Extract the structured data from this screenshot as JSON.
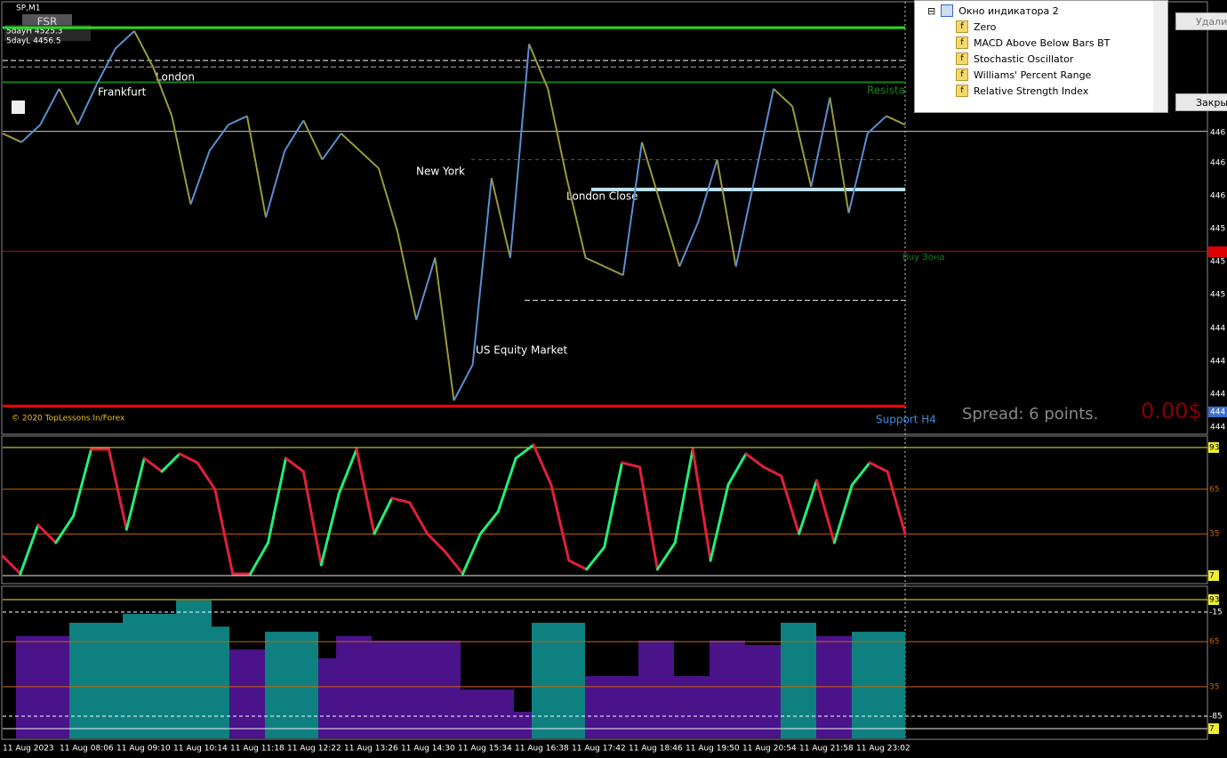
{
  "window_title": "SP,M1",
  "fsr_button": "FSR",
  "five_day_high": "5dayH 4525.3",
  "five_day_low": "5dayL 4456.5",
  "copyright": "© 2020 TopLessons.In/Forex",
  "session_labels": [
    "Frankfurt",
    "London",
    "New York",
    "London Close",
    "US Equity Market"
  ],
  "zone_labels": [
    "Resista",
    "Buy Зона",
    "Support H4"
  ],
  "spread": "Spread: 6 points.",
  "profit": "0.00$",
  "price_axis_labels": [
    "446",
    "446",
    "446",
    "445",
    "445",
    "445",
    "444",
    "444",
    "444",
    "444",
    "444"
  ],
  "price_pane": {
    "ylim": [
      4439.4,
      4478.9
    ],
    "values": [
      4466.9,
      4466.1,
      4467.7,
      4471.0,
      4467.7,
      4471.4,
      4474.7,
      4476.3,
      4473.0,
      4468.5,
      4460.4,
      4465.3,
      4467.7,
      4468.5,
      4459.2,
      4465.3,
      4468.1,
      4464.5,
      4466.9,
      4465.3,
      4463.7,
      4457.9,
      4449.8,
      4455.5,
      4442.4,
      4445.7,
      4462.8,
      4455.5,
      4475.1,
      4471.0,
      4462.8,
      4455.5,
      4454.7,
      4453.9,
      4466.1,
      4460.4,
      4454.7,
      4458.8,
      4464.5,
      4454.7,
      4462.8,
      4471.0,
      4469.4,
      4462.0,
      4470.2,
      4459.6,
      4466.9,
      4468.5,
      4467.7
    ],
    "levels": [
      4476.6,
      4473.0,
      4473.6,
      4471.6,
      4467.1,
      4456.1,
      4441.9,
      4464.5,
      4451.6
    ]
  },
  "rsi_pane": {
    "ylim": [
      2.2,
      100.2
    ],
    "yticks": [
      93,
      65,
      35,
      7
    ],
    "values": [
      20.1,
      8.2,
      41.0,
      29.1,
      47.0,
      91.8,
      91.8,
      38.0,
      85.8,
      76.9,
      88.8,
      82.8,
      64.9,
      8.2,
      8.2,
      29.1,
      85.8,
      76.9,
      14.1,
      61.9,
      91.8,
      35.1,
      59.0,
      56.0,
      35.1,
      23.1,
      8.2,
      35.1,
      50.0,
      85.8,
      94.8,
      67.9,
      17.1,
      11.2,
      26.1,
      82.8,
      79.9,
      11.2,
      29.1,
      91.8,
      17.1,
      67.9,
      88.8,
      79.9,
      73.9,
      35.1,
      70.9,
      29.1,
      67.9,
      82.8,
      76.9,
      35.1
    ]
  },
  "hist_pane": {
    "ylim": [
      0.5,
      101.3
    ],
    "yticks": [
      93,
      65,
      35,
      7
    ],
    "extra_level_labels": [
      "-15",
      "-85"
    ],
    "values": [
      68.7,
      68.7,
      68.7,
      77.6,
      77.6,
      77.6,
      83.5,
      83.5,
      83.5,
      92.4,
      92.4,
      75.0,
      59.8,
      59.8,
      71.6,
      71.6,
      71.6,
      53.9,
      68.7,
      68.7,
      65.7,
      65.7,
      65.7,
      65.7,
      65.7,
      33.1,
      33.1,
      33.1,
      18.3,
      77.6,
      77.6,
      77.6,
      42.0,
      42.0,
      42.0,
      65.7,
      65.7,
      42.0,
      42.0,
      65.7,
      65.7,
      62.8,
      62.8,
      77.6,
      77.6,
      68.7,
      68.7,
      71.6,
      71.6,
      71.6
    ]
  },
  "time_labels": [
    "11 Aug 2023",
    "11 Aug 08:06",
    "11 Aug 09:10",
    "11 Aug 10:14",
    "11 Aug 11:18",
    "11 Aug 12:22",
    "11 Aug 13:26",
    "11 Aug 14:30",
    "11 Aug 15:34",
    "11 Aug 16:38",
    "11 Aug 17:42",
    "11 Aug 18:46",
    "11 Aug 19:50",
    "11 Aug 20:54",
    "11 Aug 21:58",
    "11 Aug 23:02"
  ],
  "indicator_tree": {
    "window": "Окно индикатора 2",
    "items": [
      "Zero",
      "MACD Above Below Bars BT",
      "Stochastic Oscillator",
      "Williams' Percent Range",
      "Relative Strength Index"
    ]
  },
  "buttons": [
    "Удали",
    "Закры"
  ]
}
